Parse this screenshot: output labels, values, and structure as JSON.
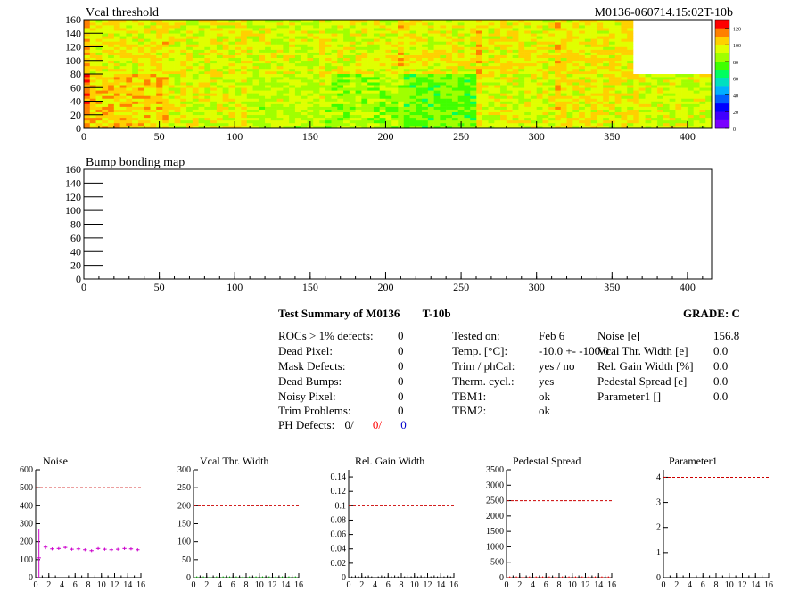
{
  "header": {
    "map_title": "Vcal threshold",
    "module_label": "M0136-060714.15:02T-10b",
    "bump_title": "Bump bonding map"
  },
  "summary": {
    "title": "Test Summary of M0136",
    "run": "T-10b",
    "grade": "GRADE:  C",
    "col1": [
      {
        "label": "ROCs > 1% defects:",
        "value": "0"
      },
      {
        "label": "Dead Pixel:",
        "value": "0"
      },
      {
        "label": "Mask Defects:",
        "value": "0"
      },
      {
        "label": "Dead Bumps:",
        "value": "0"
      },
      {
        "label": "Noisy Pixel:",
        "value": "0"
      },
      {
        "label": "Trim Problems:",
        "value": "0"
      }
    ],
    "ph_defects": {
      "label": "PH Defects:",
      "v1": "0/",
      "v2": "0/",
      "v3": "0",
      "color2": "#ff0000",
      "color3": "#0000cc"
    },
    "col2": [
      {
        "label": "Tested on:",
        "value": "Feb 6"
      },
      {
        "label": "Temp. [°C]:",
        "value": "-10.0 +- -100.0"
      },
      {
        "label": "Trim / phCal:",
        "value": "yes / no"
      },
      {
        "label": "Therm. cycl.:",
        "value": "yes"
      },
      {
        "label": "TBM1:",
        "value": "ok"
      },
      {
        "label": "TBM2:",
        "value": "ok"
      }
    ],
    "col3": [
      {
        "label": "Noise [e]",
        "value": "156.8"
      },
      {
        "label": "Vcal Thr. Width [e]",
        "value": "0.0"
      },
      {
        "label": "Rel. Gain Width [%]",
        "value": "0.0"
      },
      {
        "label": "Pedestal Spread [e]",
        "value": "0.0"
      },
      {
        "label": "Parameter1 []",
        "value": "0.0"
      }
    ]
  },
  "chart_data": [
    {
      "type": "heatmap",
      "title": "Vcal threshold",
      "xlim": [
        0,
        416
      ],
      "ylim": [
        0,
        160
      ],
      "x_ticks": [
        "0",
        "50",
        "100",
        "150",
        "200",
        "250",
        "300",
        "350",
        "400"
      ],
      "y_ticks": [
        "0",
        "20",
        "40",
        "60",
        "80",
        "100",
        "120",
        "140",
        "160"
      ],
      "z_range": [
        0,
        130
      ],
      "z_ticks": [
        "0",
        "20",
        "40",
        "60",
        "80",
        "100",
        "120"
      ],
      "roc_values_top": [
        100,
        98,
        95,
        97,
        100,
        100,
        102,
        null
      ],
      "roc_values_bottom": [
        108,
        97,
        92,
        88,
        80,
        95,
        100,
        95
      ],
      "missing_region": {
        "x": [
          364,
          416
        ],
        "y": [
          80,
          160
        ]
      },
      "palette": [
        "#7a00ff",
        "#4000ff",
        "#0000ff",
        "#0060ff",
        "#00b0ff",
        "#00e0c0",
        "#00ff60",
        "#40ff00",
        "#a0ff00",
        "#e0ff00",
        "#ffd000",
        "#ff8000",
        "#ff0000"
      ]
    },
    {
      "type": "heatmap",
      "title": "Bump bonding map",
      "xlim": [
        0,
        416
      ],
      "ylim": [
        0,
        160
      ],
      "x_ticks": [
        "0",
        "50",
        "100",
        "150",
        "200",
        "250",
        "300",
        "350",
        "400"
      ],
      "y_ticks": [
        "0",
        "20",
        "40",
        "60",
        "80",
        "100",
        "120",
        "140",
        "160"
      ],
      "values": []
    },
    {
      "type": "line",
      "title": "Noise",
      "xlim": [
        0,
        16
      ],
      "ylim": [
        0,
        600
      ],
      "x_ticks": [
        "0",
        "2",
        "4",
        "6",
        "8",
        "10",
        "12",
        "14",
        "16"
      ],
      "y_ticks": [
        "0",
        "100",
        "200",
        "300",
        "400",
        "500",
        "600"
      ],
      "reference": 500,
      "series": [
        {
          "values": [
            110,
            170,
            160,
            162,
            168,
            158,
            160,
            155,
            150,
            162,
            158,
            155,
            158,
            162,
            160,
            155
          ],
          "errors": [
            160,
            12,
            8,
            8,
            8,
            8,
            8,
            8,
            8,
            8,
            8,
            8,
            8,
            8,
            8,
            8
          ]
        }
      ],
      "color": "#cc00cc"
    },
    {
      "type": "line",
      "title": "Vcal Thr. Width",
      "xlim": [
        0,
        16
      ],
      "ylim": [
        0,
        300
      ],
      "x_ticks": [
        "0",
        "2",
        "4",
        "6",
        "8",
        "10",
        "12",
        "14",
        "16"
      ],
      "y_ticks": [
        "0",
        "50",
        "100",
        "150",
        "200",
        "250",
        "300"
      ],
      "reference": 200,
      "series": [
        {
          "values": [
            0,
            0,
            0,
            0,
            0,
            0,
            0,
            0,
            0,
            0,
            0,
            0,
            0,
            0,
            0,
            0
          ]
        }
      ],
      "color": "#008800"
    },
    {
      "type": "line",
      "title": "Rel. Gain Width",
      "xlim": [
        0,
        16
      ],
      "ylim": [
        0,
        0.15
      ],
      "x_ticks": [
        "0",
        "2",
        "4",
        "6",
        "8",
        "10",
        "12",
        "14",
        "16"
      ],
      "y_ticks": [
        "0",
        "0.02",
        "0.04",
        "0.06",
        "0.08",
        "0.1",
        "0.12",
        "0.14"
      ],
      "reference": 0.1,
      "series": [
        {
          "values": [
            0,
            0,
            0,
            0,
            0,
            0,
            0,
            0,
            0,
            0,
            0,
            0,
            0,
            0,
            0,
            0
          ]
        }
      ],
      "color": "#000000"
    },
    {
      "type": "line",
      "title": "Pedestal Spread",
      "xlim": [
        0,
        16
      ],
      "ylim": [
        0,
        3500
      ],
      "x_ticks": [
        "0",
        "2",
        "4",
        "6",
        "8",
        "10",
        "12",
        "14",
        "16"
      ],
      "y_ticks": [
        "0",
        "500",
        "1000",
        "1500",
        "2000",
        "2500",
        "3000",
        "3500"
      ],
      "reference": 2500,
      "series": [
        {
          "values": [
            0,
            0,
            0,
            0,
            0,
            0,
            0,
            0,
            0,
            0,
            0,
            0,
            0,
            0,
            0,
            0
          ]
        }
      ],
      "color": "#cc0000"
    },
    {
      "type": "line",
      "title": "Parameter1",
      "xlim": [
        0,
        16
      ],
      "ylim": [
        0,
        4.3
      ],
      "x_ticks": [
        "0",
        "2",
        "4",
        "6",
        "8",
        "10",
        "12",
        "14",
        "16"
      ],
      "y_ticks": [
        "0",
        "1",
        "2",
        "3",
        "4"
      ],
      "reference": 4,
      "series": [
        {
          "values": []
        }
      ],
      "color": "#000000"
    }
  ]
}
